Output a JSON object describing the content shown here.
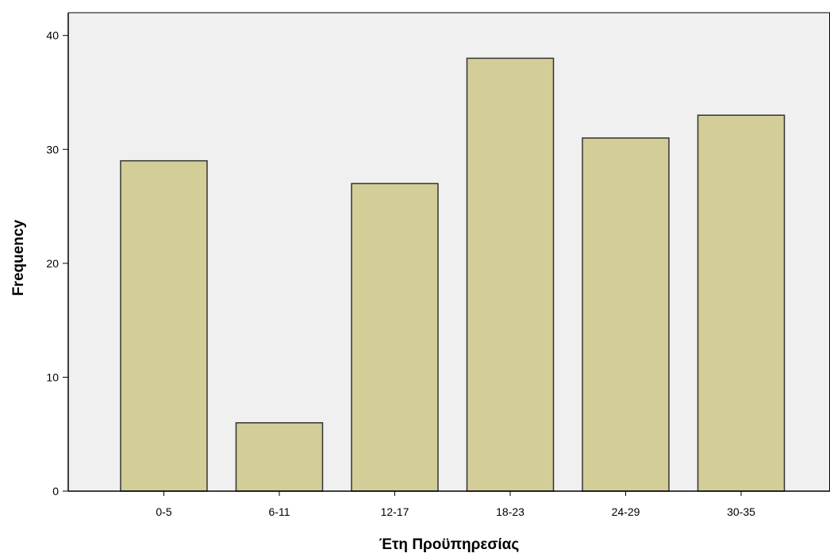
{
  "chart_data": {
    "type": "bar",
    "title": "",
    "xlabel": "Έτη Προϋπηρεσίας",
    "ylabel": "Frequency",
    "categories": [
      "0-5",
      "6-11",
      "12-17",
      "18-23",
      "24-29",
      "30-35"
    ],
    "values": [
      29,
      6,
      27,
      38,
      31,
      33
    ],
    "ylim": [
      0,
      42
    ],
    "yticks": [
      0,
      10,
      20,
      30,
      40
    ],
    "grid": false,
    "colors": {
      "bar_fill": "#d3ce98",
      "bar_stroke": "#333333",
      "plot_background": "#f0f0f0",
      "axis": "#000000"
    }
  }
}
